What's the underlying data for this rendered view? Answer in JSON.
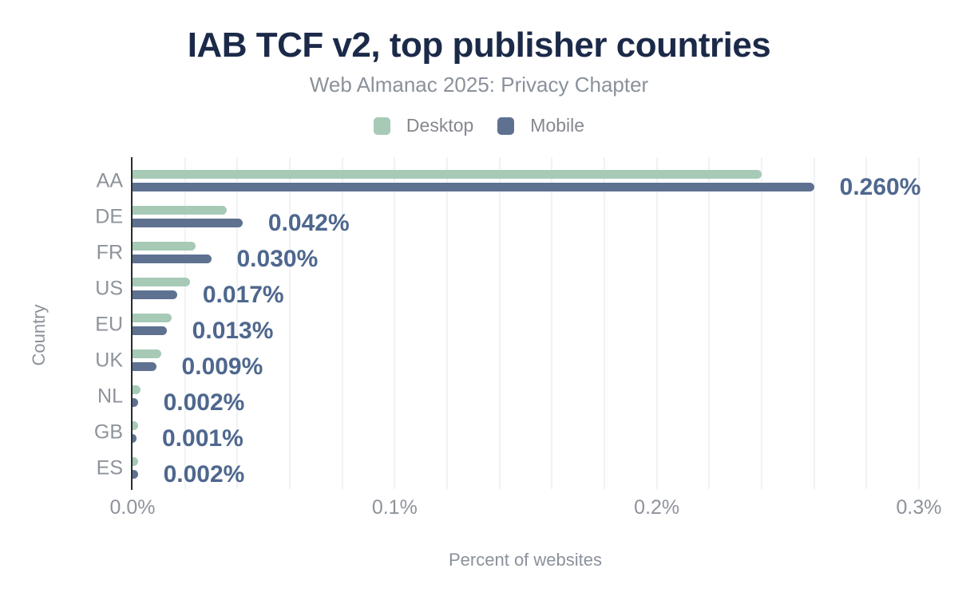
{
  "colors": {
    "background": "#ffffff",
    "title": "#1c2a49",
    "subtitle": "#8b919b",
    "axis_text": "#8e939b",
    "legend_text": "#84888f",
    "value_label": "#4e678e",
    "axis_line": "#282c33",
    "gridline": "#f1f2f5",
    "desktop": "#a6cab6",
    "mobile": "#5e7191"
  },
  "chart_data": {
    "type": "bar",
    "orientation": "horizontal",
    "title": "IAB TCF v2, top publisher countries",
    "subtitle": "Web Almanac 2025: Privacy Chapter",
    "xlabel": "Percent of websites",
    "ylabel": "Country",
    "categories": [
      "AA",
      "DE",
      "FR",
      "US",
      "EU",
      "UK",
      "NL",
      "GB",
      "ES"
    ],
    "series": [
      {
        "name": "Desktop",
        "color": "#a6cab6",
        "values": [
          0.24,
          0.036,
          0.024,
          0.022,
          0.015,
          0.011,
          0.003,
          0.002,
          0.002
        ]
      },
      {
        "name": "Mobile",
        "color": "#5e7191",
        "values": [
          0.26,
          0.042,
          0.03,
          0.017,
          0.013,
          0.009,
          0.002,
          0.001,
          0.002
        ]
      }
    ],
    "value_labels": [
      "0.260%",
      "0.042%",
      "0.030%",
      "0.017%",
      "0.013%",
      "0.009%",
      "0.002%",
      "0.001%",
      "0.002%"
    ],
    "value_labels_series": "Mobile",
    "x_ticks": [
      "0.0%",
      "0.1%",
      "0.2%",
      "0.3%"
    ],
    "x_tick_values": [
      0,
      0.1,
      0.2,
      0.3
    ],
    "xlim": [
      0,
      0.3
    ],
    "gridline_step": 0.02,
    "grid": "vertical",
    "legend_position": "top"
  }
}
